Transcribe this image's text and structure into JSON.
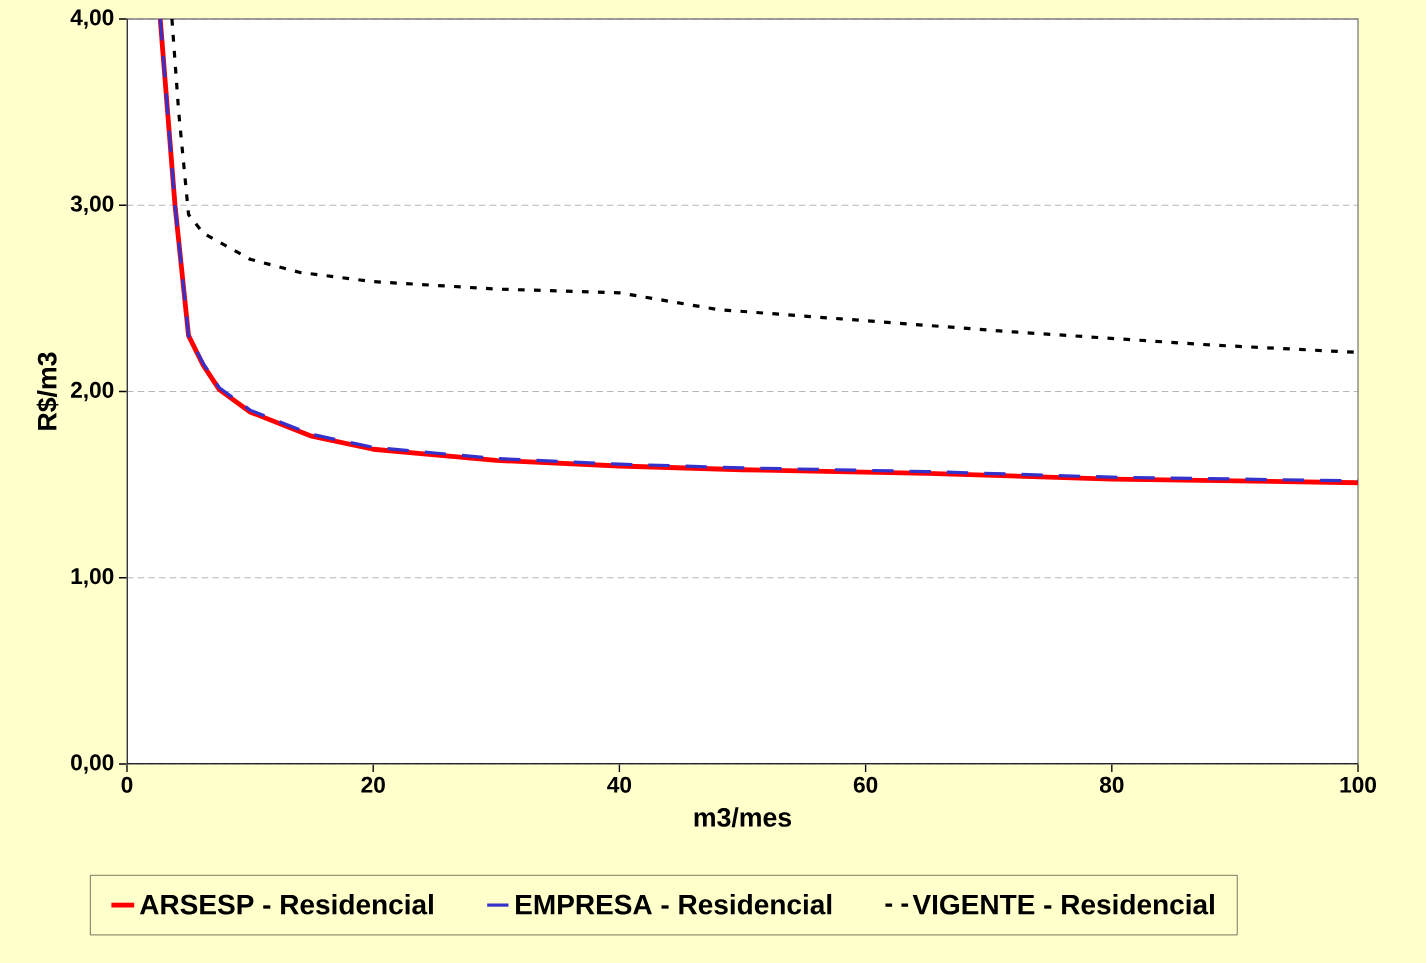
{
  "chart_data": {
    "type": "line",
    "xlabel": "m3/mes",
    "ylabel": "R$/m3",
    "xlim": [
      0,
      100
    ],
    "ylim": [
      0,
      4
    ],
    "xticks": [
      0,
      20,
      40,
      60,
      80,
      100
    ],
    "yticks": [
      {
        "value": 0,
        "label": "0,00"
      },
      {
        "value": 1,
        "label": "1,00"
      },
      {
        "value": 2,
        "label": "2,00"
      },
      {
        "value": 3,
        "label": "3,00"
      },
      {
        "value": 4,
        "label": "4,00"
      }
    ],
    "grid": "y",
    "legend": "bottom",
    "marker": "none",
    "series": [
      {
        "name": "ARSESP - Residencial",
        "color": "#ff0000",
        "line_style": "solid",
        "x": [
          2.7,
          3.9,
          5,
          6.2,
          7.5,
          10,
          15,
          20,
          25,
          30,
          40,
          50,
          65,
          80,
          100
        ],
        "values": [
          4.0,
          3.0,
          2.3,
          2.14,
          2.01,
          1.89,
          1.76,
          1.69,
          1.66,
          1.63,
          1.6,
          1.58,
          1.56,
          1.53,
          1.51
        ]
      },
      {
        "name": "EMPRESA - Residencial",
        "color": "#3333cc",
        "line_style": "dashed",
        "x": [
          2.7,
          3.9,
          5,
          6.2,
          7.5,
          10,
          15,
          20,
          25,
          30,
          40,
          50,
          65,
          80,
          100
        ],
        "values": [
          4.0,
          3.0,
          2.3,
          2.15,
          2.02,
          1.9,
          1.77,
          1.7,
          1.67,
          1.64,
          1.61,
          1.59,
          1.57,
          1.54,
          1.52
        ]
      },
      {
        "name": "VIGENTE - Residencial",
        "color": "#000000",
        "line_style": "dotted",
        "x": [
          3.65,
          4.2,
          5,
          6.2,
          10,
          14,
          20,
          30,
          40,
          48,
          58,
          72,
          88,
          100
        ],
        "values": [
          4.0,
          3.5,
          2.95,
          2.85,
          2.71,
          2.64,
          2.59,
          2.55,
          2.53,
          2.44,
          2.39,
          2.32,
          2.25,
          2.21
        ]
      }
    ]
  }
}
